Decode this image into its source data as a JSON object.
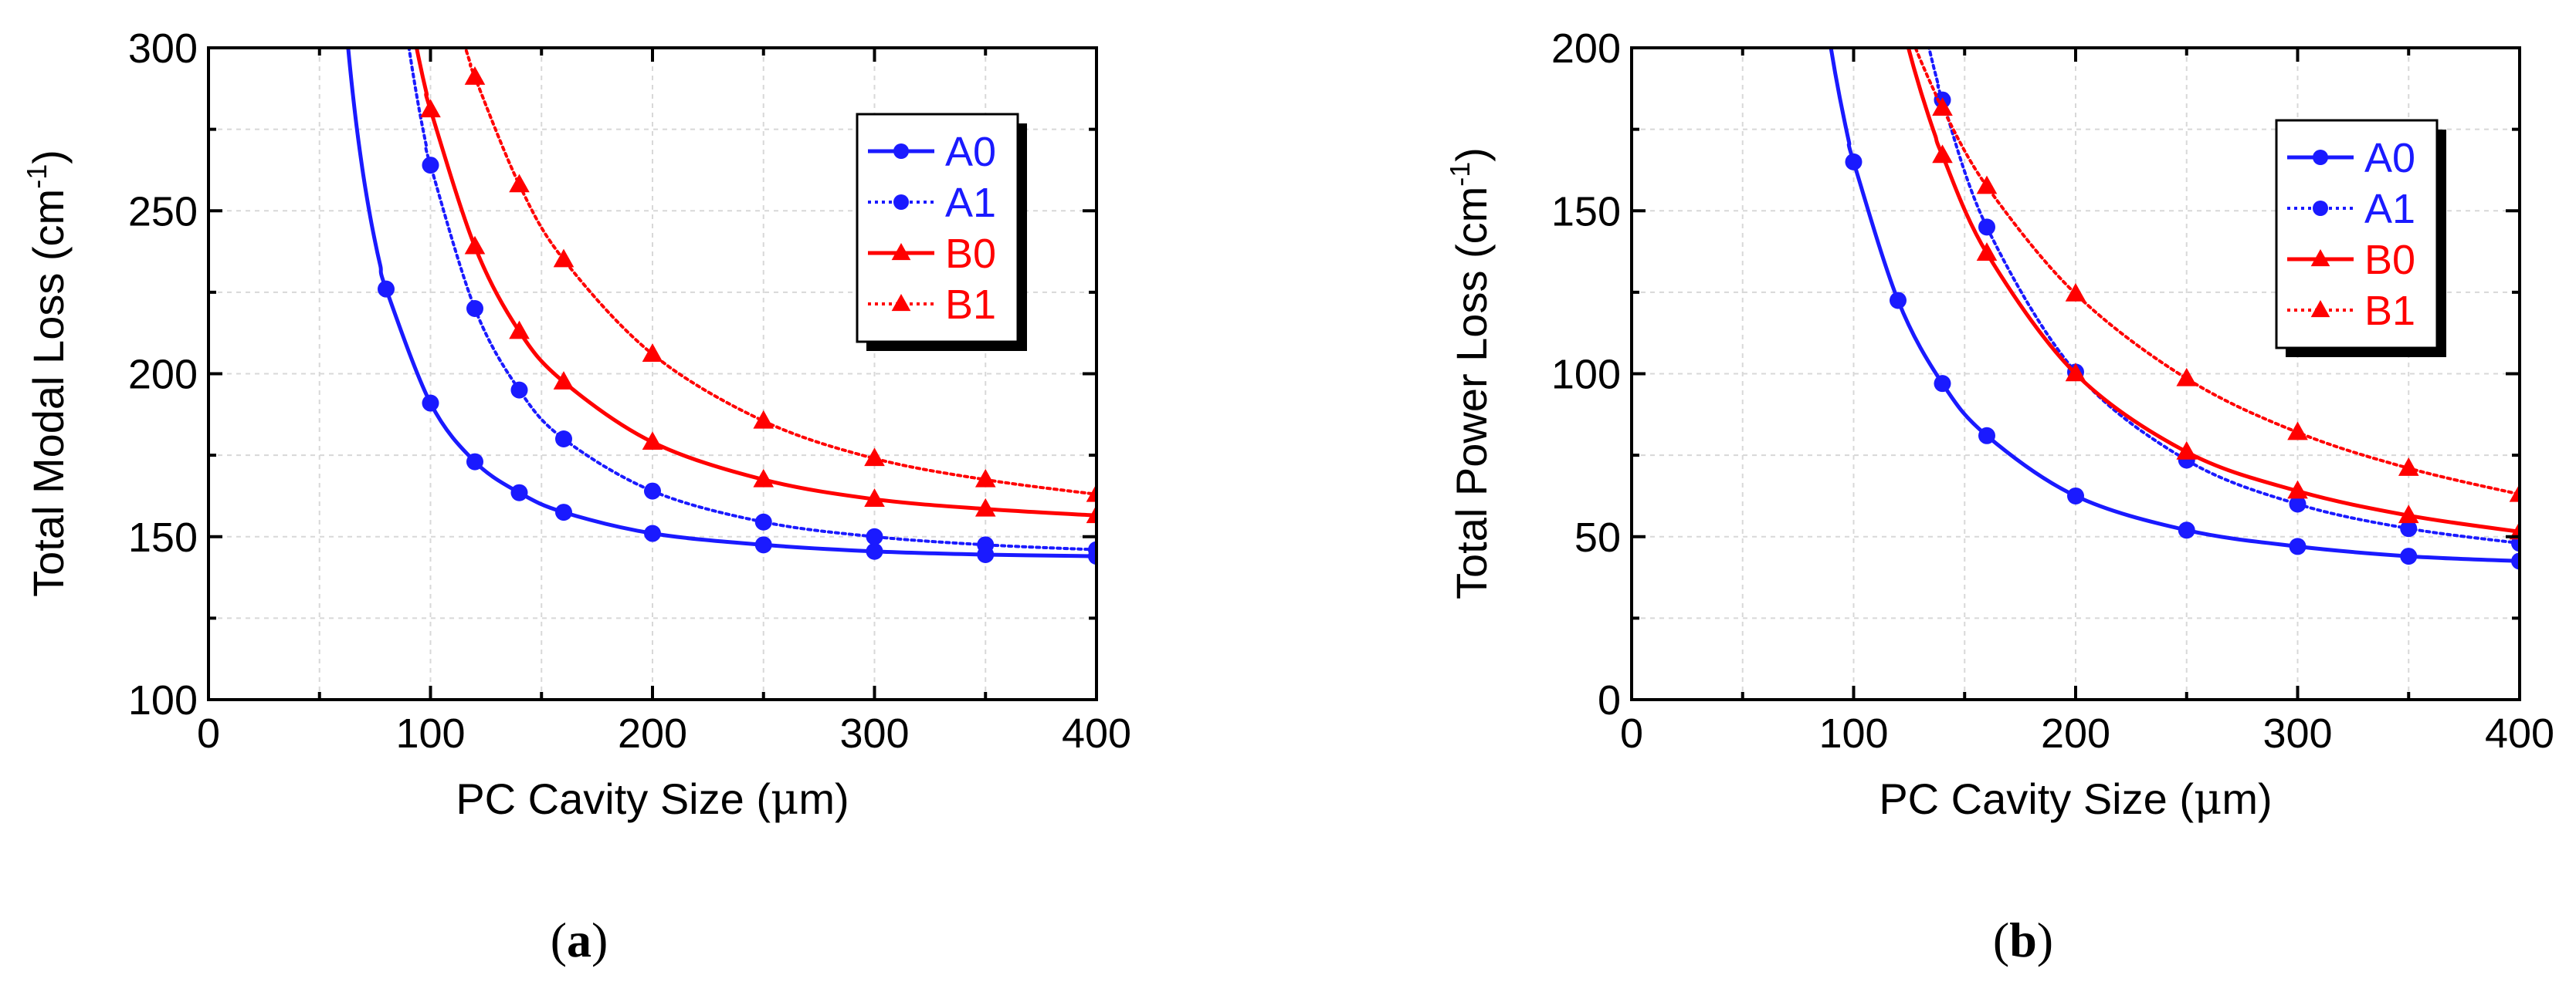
{
  "chart_data": [
    {
      "type": "line",
      "panel": "a",
      "caption": "(a)",
      "caption_parts": {
        "open": "(",
        "letter": "a",
        "close": ")"
      },
      "xlabel": "PC Cavity Size (μm)",
      "xlabel_parts": {
        "pre": "PC Cavity Size (",
        "mu": "μ",
        "post": "m)"
      },
      "ylabel": "Total Modal Loss (cm-1)",
      "ylabel_parts": {
        "pre": "Total Modal Loss (cm",
        "sup": "-1",
        "post": ")"
      },
      "xlim": [
        0,
        400
      ],
      "ylim": [
        100,
        300
      ],
      "xticks": [
        0,
        100,
        200,
        300,
        400
      ],
      "yticks": [
        100,
        150,
        200,
        250,
        300
      ],
      "grid": true,
      "legend_position": "top-right",
      "series": [
        {
          "name": "A0",
          "color": "#1a1aff",
          "style": "solid",
          "marker": "circle",
          "x": [
            80,
            100,
            120,
            140,
            160,
            200,
            250,
            300,
            350,
            400
          ],
          "y": [
            226,
            191,
            173,
            163.5,
            157.5,
            151,
            147.5,
            145.5,
            144.5,
            144
          ]
        },
        {
          "name": "A1",
          "color": "#1a1aff",
          "style": "dotted",
          "marker": "circle",
          "x": [
            100,
            120,
            140,
            160,
            200,
            250,
            300,
            350,
            400
          ],
          "y": [
            264,
            220,
            195,
            180,
            164,
            154.5,
            150,
            147.5,
            146
          ]
        },
        {
          "name": "B0",
          "color": "#ff0000",
          "style": "solid",
          "marker": "triangle",
          "x": [
            100,
            120,
            140,
            160,
            200,
            250,
            300,
            350,
            400
          ],
          "y": [
            281,
            239,
            213,
            197.5,
            179,
            167.5,
            161.5,
            158.5,
            156.5
          ]
        },
        {
          "name": "B1",
          "color": "#ff0000",
          "style": "dotted",
          "marker": "triangle",
          "x": [
            120,
            140,
            160,
            200,
            250,
            300,
            350,
            400
          ],
          "y": [
            291,
            258,
            235,
            206,
            185.5,
            174,
            167.5,
            163
          ]
        }
      ]
    },
    {
      "type": "line",
      "panel": "b",
      "caption": "(b)",
      "caption_parts": {
        "open": "(",
        "letter": "b",
        "close": ")"
      },
      "xlabel": "PC Cavity Size (μm)",
      "xlabel_parts": {
        "pre": "PC Cavity Size (",
        "mu": "μ",
        "post": "m)"
      },
      "ylabel": "Total Power Loss (cm-1)",
      "ylabel_parts": {
        "pre": "Total Power Loss (cm",
        "sup": "-1",
        "post": ")"
      },
      "xlim": [
        0,
        400
      ],
      "ylim": [
        0,
        200
      ],
      "xticks": [
        0,
        100,
        200,
        300,
        400
      ],
      "yticks": [
        0,
        50,
        100,
        150,
        200
      ],
      "grid": true,
      "legend_position": "top-right",
      "series": [
        {
          "name": "A0",
          "color": "#1a1aff",
          "style": "solid",
          "marker": "circle",
          "x": [
            100,
            120,
            140,
            160,
            200,
            250,
            300,
            350,
            400
          ],
          "y": [
            165,
            122.5,
            97,
            81,
            62.5,
            52,
            47,
            44,
            42.5
          ]
        },
        {
          "name": "A1",
          "color": "#1a1aff",
          "style": "dotted",
          "marker": "circle",
          "x": [
            140,
            160,
            200,
            250,
            300,
            350,
            400
          ],
          "y": [
            184,
            145,
            100.5,
            73.5,
            60,
            52.5,
            48
          ]
        },
        {
          "name": "B0",
          "color": "#ff0000",
          "style": "solid",
          "marker": "triangle",
          "x": [
            140,
            160,
            200,
            250,
            300,
            350,
            400
          ],
          "y": [
            167,
            137,
            100,
            76,
            64,
            56.5,
            51.5
          ]
        },
        {
          "name": "B1",
          "color": "#ff0000",
          "style": "dotted",
          "marker": "triangle",
          "x": [
            140,
            160,
            200,
            250,
            300,
            350,
            400
          ],
          "y": [
            181.5,
            157.5,
            124.5,
            98.5,
            82,
            71,
            63
          ]
        }
      ]
    }
  ]
}
